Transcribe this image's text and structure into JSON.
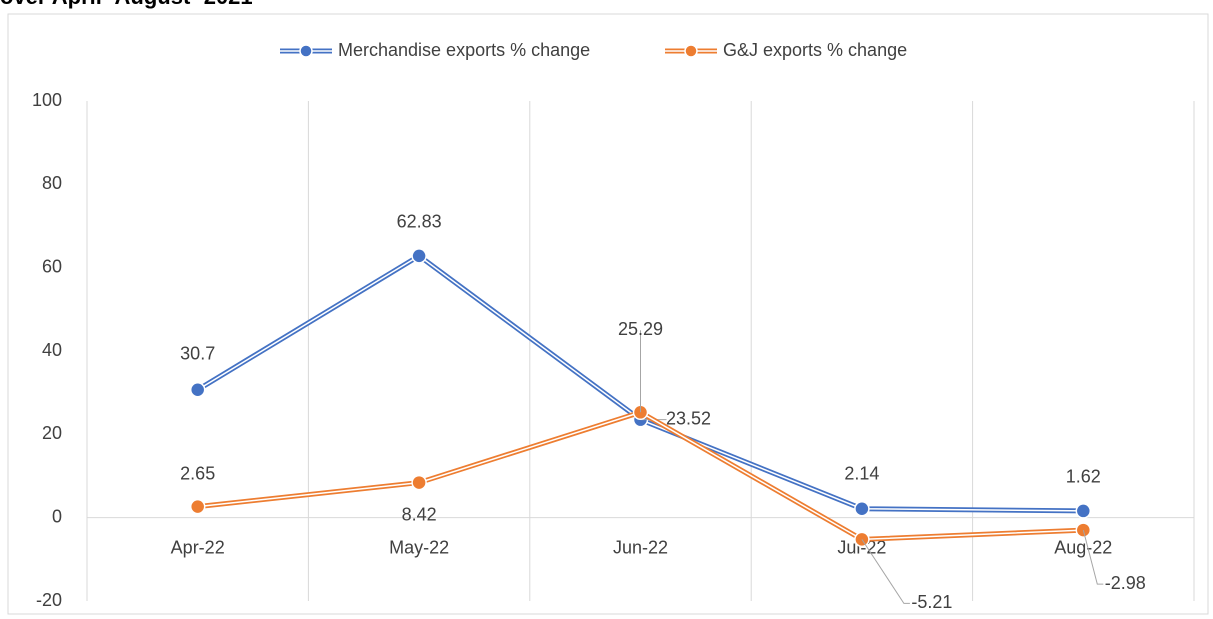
{
  "chart_data": {
    "type": "line",
    "title": "over April- August- 2021",
    "categories": [
      "Apr-22",
      "May-22",
      "Jun-22",
      "Jul-22",
      "Aug-22"
    ],
    "series": [
      {
        "name": "Merchandise exports % change",
        "color": "#4472c4",
        "values": [
          30.7,
          62.83,
          23.52,
          2.14,
          1.62
        ]
      },
      {
        "name": "G&J exports % change",
        "color": "#ed7d31",
        "values": [
          2.65,
          8.42,
          25.29,
          -5.21,
          -2.98
        ]
      }
    ],
    "ylim": [
      -20,
      100
    ],
    "yticks": [
      -20,
      0,
      20,
      40,
      60,
      80,
      100
    ],
    "grid": "vertical",
    "legend": "top"
  }
}
